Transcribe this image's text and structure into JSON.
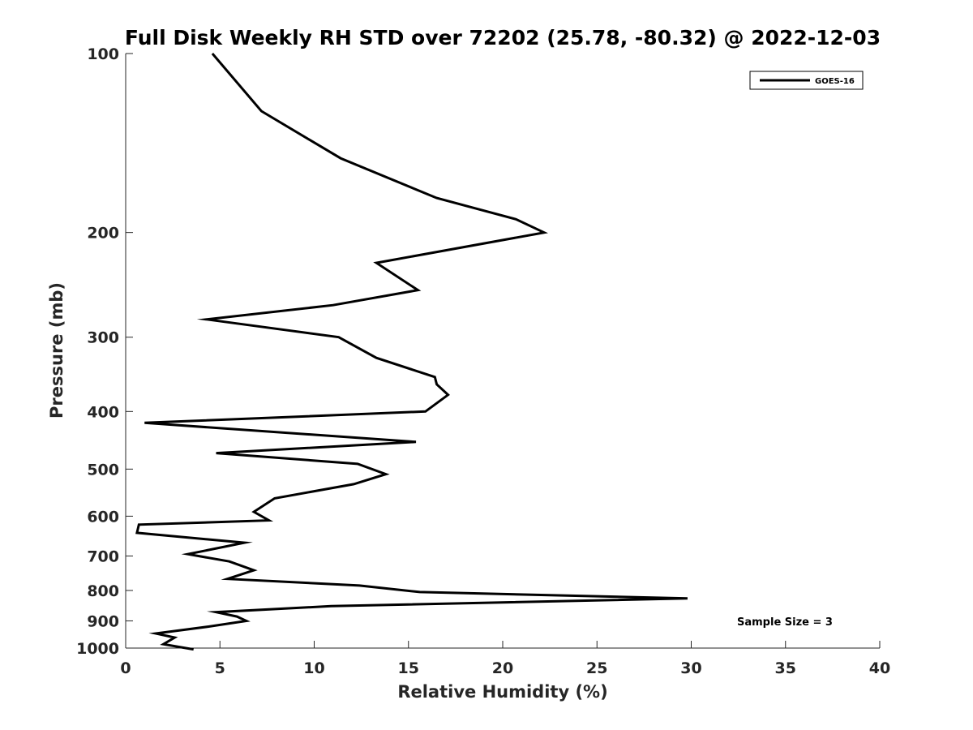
{
  "chart_data": {
    "type": "line",
    "title": "Full Disk Weekly RH STD over 72202 (25.78, -80.32) @ 2022-12-03",
    "xlabel": "Relative Humidity (%)",
    "ylabel": "Pressure (mb)",
    "xlim": [
      0,
      40
    ],
    "ylim": [
      100,
      1000
    ],
    "y_scale": "log",
    "y_reversed": true,
    "grid": false,
    "legend_position": "top-right",
    "x_ticks": [
      0,
      5,
      10,
      15,
      20,
      25,
      30,
      35,
      40
    ],
    "x_tick_labels": [
      "0",
      "5",
      "10",
      "15",
      "20",
      "25",
      "30",
      "35",
      "40"
    ],
    "y_ticks": [
      100,
      200,
      300,
      400,
      500,
      600,
      700,
      800,
      900,
      1000
    ],
    "y_tick_labels": [
      "100",
      "200",
      "300",
      "400",
      "500",
      "600",
      "700",
      "800",
      "900",
      "1000"
    ],
    "series": [
      {
        "name": "GOES-16",
        "color": "#000000",
        "x": [
          4.6,
          7.2,
          11.4,
          16.5,
          20.7,
          22.2,
          13.3,
          15.5,
          11.0,
          4.3,
          11.3,
          13.3,
          16.4,
          16.5,
          17.1,
          15.9,
          1.0,
          15.4,
          4.8,
          12.3,
          13.8,
          12.1,
          7.9,
          6.8,
          7.6,
          0.7,
          0.6,
          6.3,
          3.3,
          5.5,
          6.8,
          5.4,
          12.4,
          15.6,
          29.8,
          10.9,
          4.8,
          5.9,
          6.4,
          4.4,
          1.6,
          2.6,
          2.0,
          3.6
        ],
        "y": [
          100,
          125,
          150,
          175,
          190,
          200,
          225,
          250,
          265,
          280,
          300,
          325,
          350,
          360,
          375,
          400,
          418,
          450,
          470,
          490,
          510,
          530,
          560,
          590,
          610,
          620,
          640,
          665,
          695,
          715,
          740,
          765,
          785,
          805,
          825,
          850,
          870,
          885,
          900,
          920,
          945,
          960,
          985,
          1005
        ]
      }
    ],
    "annotations": [
      "Sample Size = 3"
    ]
  }
}
